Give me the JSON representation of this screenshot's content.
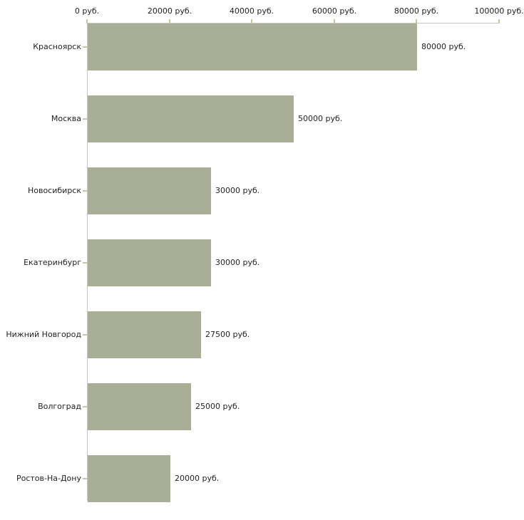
{
  "chart_data": {
    "type": "bar",
    "orientation": "horizontal",
    "title": "",
    "xlabel": "",
    "ylabel": "",
    "categories": [
      "Красноярск",
      "Москва",
      "Новосибирск",
      "Екатеринбург",
      "Нижний Новгород",
      "Волгоград",
      "Ростов-На-Дону"
    ],
    "values": [
      80000,
      50000,
      30000,
      30000,
      27500,
      25000,
      20000
    ],
    "value_labels": [
      "80000 руб.",
      "50000 руб.",
      "30000 руб.",
      "30000 руб.",
      "27500 руб.",
      "25000 руб.",
      "20000 руб."
    ],
    "x_axis": {
      "position": "top",
      "range": [
        0,
        100000
      ],
      "ticks": [
        0,
        20000,
        40000,
        60000,
        80000,
        100000
      ],
      "tick_labels": [
        "0 руб.",
        "20000 руб.",
        "40000 руб.",
        "60000 руб.",
        "80000 руб.",
        "100000 руб."
      ],
      "unit": "руб."
    },
    "grid": "off",
    "legend": "none",
    "colors": {
      "bar_fill": "#a9ae96",
      "axis_line": "#c6c6c6",
      "tick_mark": "#c9c5a3",
      "text": "#222222",
      "background": "#ffffff"
    }
  }
}
